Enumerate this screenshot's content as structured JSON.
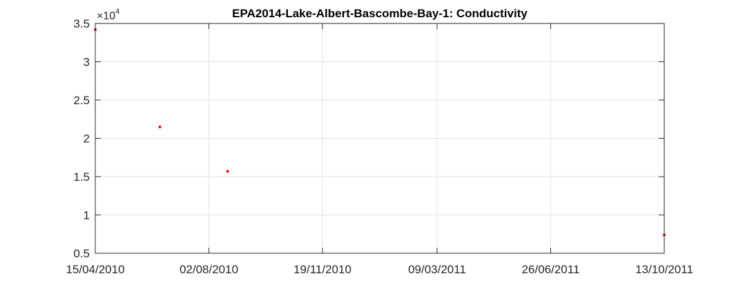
{
  "chart_data": {
    "type": "scatter",
    "title": "EPA2014-Lake-Albert-Bascombe-Bay-1: Conductivity",
    "xlabel": "",
    "ylabel": "",
    "x_tick_labels": [
      "15/04/2010",
      "02/08/2010",
      "19/11/2010",
      "09/03/2011",
      "26/06/2011",
      "13/10/2011"
    ],
    "x_ticks": [
      "2010-04-15",
      "2010-08-02",
      "2010-11-19",
      "2011-03-09",
      "2011-06-26",
      "2011-10-13"
    ],
    "xlim": [
      "2010-04-15",
      "2011-10-13"
    ],
    "y_tick_labels": [
      "0.5",
      "1",
      "1.5",
      "2",
      "2.5",
      "3",
      "3.5"
    ],
    "y_ticks": [
      5000,
      10000,
      15000,
      20000,
      25000,
      30000,
      35000
    ],
    "ylim": [
      5000,
      35000
    ],
    "y_exponent_base": "×10",
    "y_exponent_power": "4",
    "grid": true,
    "series": [
      {
        "color": "#ff0000",
        "x": [
          "2010-04-15",
          "2010-06-16",
          "2010-08-20",
          "2011-10-13"
        ],
        "y": [
          34200,
          21500,
          15700,
          7400
        ]
      }
    ]
  }
}
